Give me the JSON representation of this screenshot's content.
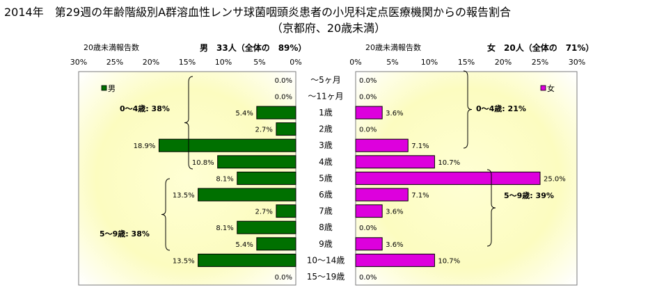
{
  "header": {
    "title_line1": "2014年　第29週の年齢階級別A群溶血性レンサ球菌咽頭炎患者の小児科定点医療機関からの報告割合",
    "title_line2": "（京都府、20歳未満）"
  },
  "chart_data": {
    "type": "bar",
    "categories": [
      "～5ヶ月",
      "～11ヶ月",
      "1歳",
      "2歳",
      "3歳",
      "4歳",
      "5歳",
      "6歳",
      "7歳",
      "8歳",
      "9歳",
      "10～14歳",
      "15～19歳"
    ],
    "xlim": [
      0,
      30
    ],
    "x_ticks": [
      "0%",
      "5%",
      "10%",
      "15%",
      "20%",
      "25%",
      "30%"
    ],
    "series": [
      {
        "name": "男",
        "color": "#007000",
        "values": [
          0.0,
          0.0,
          5.4,
          2.7,
          18.9,
          10.8,
          8.1,
          13.5,
          2.7,
          8.1,
          5.4,
          13.5,
          0.0
        ],
        "labels": [
          "0.0%",
          "0.0%",
          "5.4%",
          "2.7%",
          "18.9%",
          "10.8%",
          "8.1%",
          "13.5%",
          "2.7%",
          "8.1%",
          "5.4%",
          "13.5%",
          "0.0%"
        ]
      },
      {
        "name": "女",
        "color": "#dd00dd",
        "values": [
          0.0,
          0.0,
          3.6,
          0.0,
          7.1,
          10.7,
          25.0,
          7.1,
          3.6,
          0.0,
          3.6,
          10.7,
          0.0
        ],
        "labels": [
          "0.0%",
          "0.0%",
          "3.6%",
          "0.0%",
          "7.1%",
          "10.7%",
          "25.0%",
          "7.1%",
          "3.6%",
          "0.0%",
          "3.6%",
          "10.7%",
          "0.0%"
        ]
      }
    ],
    "left_panel": {
      "caption": "20歳未満報告数",
      "summary": "男　33人（全体の　89%）",
      "legend": "男",
      "brackets": [
        "0～4歳: 38%",
        "5～9歳: 38%"
      ]
    },
    "right_panel": {
      "caption": "20歳未満報告数",
      "summary": "女　20人（全体の　71%）",
      "legend": "女",
      "brackets": [
        "0～4歳: 21%",
        "5～9歳: 39%"
      ]
    },
    "grid": false,
    "background": "yellow-radial"
  }
}
